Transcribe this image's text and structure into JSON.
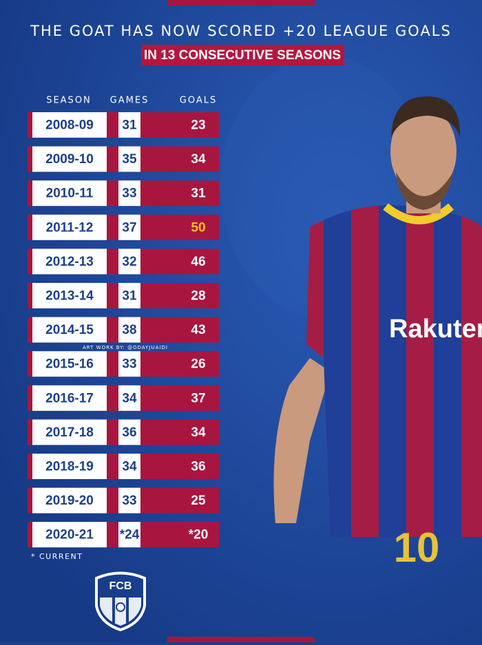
{
  "header": {
    "title": "THE GOAT HAS NOW SCORED +20 LEAGUE GOALS",
    "subtitle": "IN 13 CONSECUTIVE SEASONS"
  },
  "table": {
    "columns": [
      "SEASON",
      "GAMES",
      "GOALS"
    ],
    "rows": [
      [
        "2008-09",
        31,
        23
      ],
      [
        "2009-10",
        35,
        34
      ],
      [
        "2010-11",
        33,
        31
      ],
      [
        "2011-12",
        37,
        50
      ],
      [
        "2012-13",
        32,
        46
      ],
      [
        "2013-14",
        31,
        28
      ],
      [
        "2014-15",
        38,
        43
      ],
      [
        "2015-16",
        33,
        26
      ],
      [
        "2016-17",
        34,
        37
      ],
      [
        "2017-18",
        36,
        34
      ],
      [
        "2018-19",
        34,
        36
      ],
      [
        "2019-20",
        33,
        25
      ],
      [
        "2020-21",
        "*24",
        "*20"
      ]
    ],
    "highlight": {
      "row": 3,
      "color": "#f7c21b"
    }
  },
  "credit": "ART WORK BY: @ODAYJUAIDI",
  "footnote": "* CURRENT",
  "logo": {
    "text": "FCB"
  },
  "photo": {
    "shirt_sponsor": "Rakuten",
    "shirt_number": "10"
  }
}
